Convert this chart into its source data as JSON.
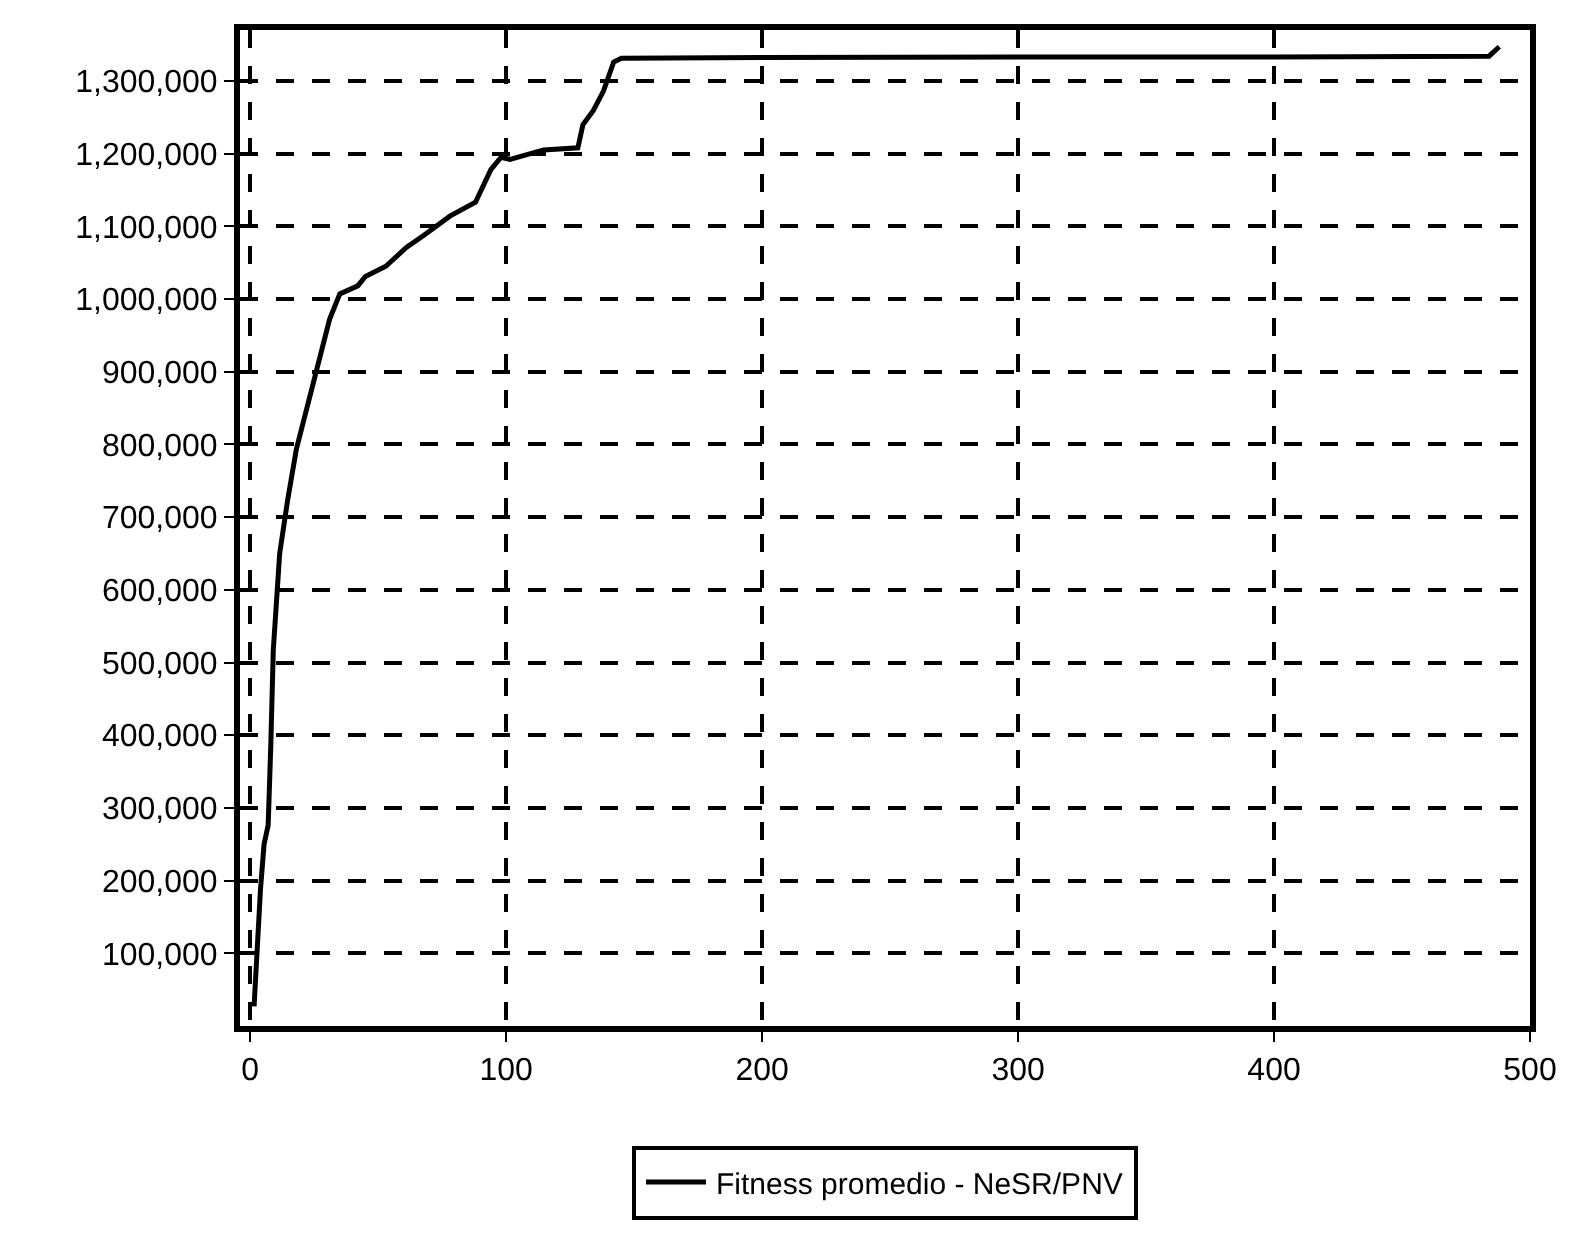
{
  "chart_data": {
    "type": "line",
    "x": [
      1.5,
      4,
      5.4,
      7,
      8,
      9,
      11.5,
      14.6,
      18,
      24.6,
      31,
      35,
      42,
      45,
      53,
      61,
      68,
      78,
      88,
      94,
      98,
      101.5,
      114.6,
      128,
      130,
      134,
      138,
      142,
      145,
      200,
      300,
      400,
      484,
      488
    ],
    "series": [
      {
        "name": "Fitness promedio - NeSR/PNV",
        "color": "#000000",
        "values": [
          27000,
          188000,
          250000,
          276000,
          383000,
          517000,
          650000,
          723000,
          793000,
          884000,
          972000,
          1007000,
          1018000,
          1031000,
          1045000,
          1071000,
          1088000,
          1114000,
          1133000,
          1178000,
          1195000,
          1192000,
          1205000,
          1208000,
          1240000,
          1259000,
          1286000,
          1326000,
          1331000,
          1332000,
          1333000,
          1333000,
          1334000,
          1347000
        ]
      }
    ],
    "xlim": [
      -4,
      500
    ],
    "ylim": [
      0,
      1370000
    ],
    "xticks": [
      0,
      100,
      200,
      300,
      400,
      500
    ],
    "yticks": [
      {
        "value": 100000,
        "label": "100,000"
      },
      {
        "value": 200000,
        "label": "200,000"
      },
      {
        "value": 300000,
        "label": "300,000"
      },
      {
        "value": 400000,
        "label": "400,000"
      },
      {
        "value": 500000,
        "label": "500,000"
      },
      {
        "value": 600000,
        "label": "600,000"
      },
      {
        "value": 700000,
        "label": "700,000"
      },
      {
        "value": 800000,
        "label": "800,000"
      },
      {
        "value": 900000,
        "label": "900,000"
      },
      {
        "value": 1000000,
        "label": "1,000,000"
      },
      {
        "value": 1100000,
        "label": "1,100,000"
      },
      {
        "value": 1200000,
        "label": "1,200,000"
      },
      {
        "value": 1300000,
        "label": "1,300,000"
      }
    ],
    "grid": true,
    "legend": "bottom",
    "marker": "none",
    "line_style": "solid"
  }
}
